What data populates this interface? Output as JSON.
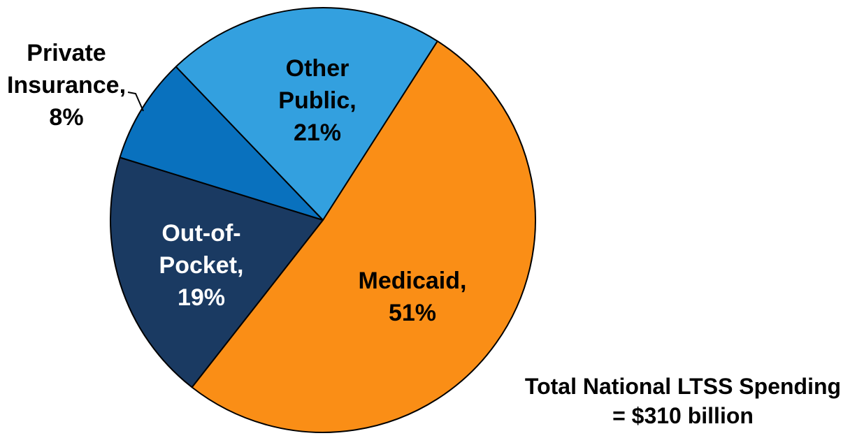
{
  "chart_data": {
    "type": "pie",
    "title": "",
    "legend": "none",
    "background_color": "#FFFFFF",
    "stroke_color": "#000000",
    "start_angle_deg": 32.6,
    "slices": [
      {
        "name": "Medicaid",
        "value": 51,
        "color": "#FA8E16",
        "label_color": "#000000",
        "label_lines": [
          "Medicaid,",
          "51%"
        ],
        "label_position": "inside"
      },
      {
        "name": "Out-of-Pocket",
        "value": 19,
        "color": "#1A3A62",
        "label_color": "#FFFFFF",
        "label_lines": [
          "Out-of-",
          "Pocket,",
          "19%"
        ],
        "label_position": "inside"
      },
      {
        "name": "Private Insurance",
        "value": 8,
        "color": "#0971BE",
        "label_color": "#000000",
        "label_lines": [
          "Private",
          "Insurance,",
          "8%"
        ],
        "label_position": "outside-with-leader-line"
      },
      {
        "name": "Other Public",
        "value": 21,
        "color": "#33A0DF",
        "label_color": "#000000",
        "label_lines": [
          "Other",
          "Public,",
          "21%"
        ],
        "label_position": "inside"
      }
    ],
    "annotation": {
      "lines": [
        "Total National LTSS Spending",
        "= $310 billion"
      ],
      "color": "#000000"
    }
  }
}
